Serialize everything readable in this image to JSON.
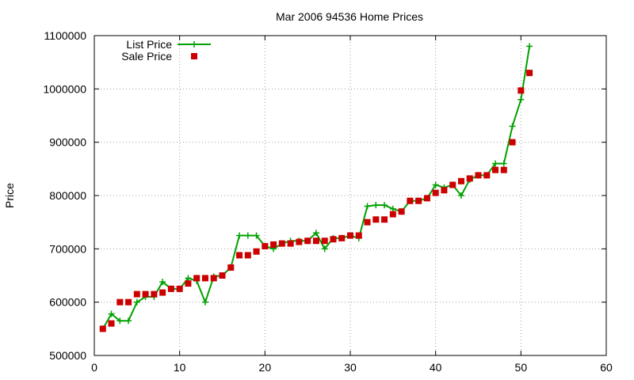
{
  "chart_data": {
    "type": "line",
    "title": "Mar 2006 94536 Home Prices",
    "xlabel": "",
    "ylabel": "Price",
    "xlim": [
      0,
      60
    ],
    "ylim": [
      500000,
      1100000
    ],
    "x_ticks": [
      0,
      10,
      20,
      30,
      40,
      50,
      60
    ],
    "y_ticks": [
      500000,
      600000,
      700000,
      800000,
      900000,
      1000000,
      1100000
    ],
    "x_tick_labels": [
      "0",
      "10",
      "20",
      "30",
      "40",
      "50",
      "60"
    ],
    "y_tick_labels": [
      "500000",
      "600000",
      "700000",
      "800000",
      "900000",
      "1000000",
      "1100000"
    ],
    "grid": true,
    "legend_position": "top-left",
    "series": [
      {
        "name": "List Price",
        "style": "line-plus",
        "color": "#00a000",
        "x": [
          1,
          2,
          3,
          4,
          5,
          6,
          7,
          8,
          9,
          10,
          11,
          12,
          13,
          14,
          15,
          16,
          17,
          18,
          19,
          20,
          21,
          22,
          23,
          24,
          25,
          26,
          27,
          28,
          29,
          30,
          31,
          32,
          33,
          34,
          35,
          36,
          37,
          38,
          39,
          40,
          41,
          42,
          43,
          44,
          45,
          46,
          47,
          48,
          49,
          50,
          51
        ],
        "values": [
          550000,
          578000,
          565000,
          565000,
          600000,
          610000,
          610000,
          638000,
          625000,
          625000,
          645000,
          640000,
          600000,
          648000,
          650000,
          665000,
          725000,
          725000,
          725000,
          705000,
          700000,
          710000,
          715000,
          715000,
          715000,
          730000,
          700000,
          720000,
          720000,
          725000,
          720000,
          780000,
          782000,
          782000,
          775000,
          770000,
          790000,
          790000,
          795000,
          820000,
          815000,
          820000,
          800000,
          830000,
          838000,
          838000,
          860000,
          860000,
          930000,
          980000,
          1080000
        ]
      },
      {
        "name": "Sale Price",
        "style": "square",
        "color": "#cc0000",
        "x": [
          1,
          2,
          3,
          4,
          5,
          6,
          7,
          8,
          9,
          10,
          11,
          12,
          13,
          14,
          15,
          16,
          17,
          18,
          19,
          20,
          21,
          22,
          23,
          24,
          25,
          26,
          27,
          28,
          29,
          30,
          31,
          32,
          33,
          34,
          35,
          36,
          37,
          38,
          39,
          40,
          41,
          42,
          43,
          44,
          45,
          46,
          47,
          48,
          49,
          50,
          51
        ],
        "values": [
          550000,
          560000,
          600000,
          600000,
          615000,
          615000,
          615000,
          618000,
          625000,
          625000,
          635000,
          645000,
          645000,
          645000,
          650000,
          665000,
          688000,
          688000,
          695000,
          705000,
          708000,
          710000,
          710000,
          713000,
          715000,
          715000,
          715000,
          718000,
          720000,
          725000,
          725000,
          750000,
          755000,
          755000,
          765000,
          770000,
          790000,
          790000,
          795000,
          805000,
          810000,
          820000,
          827000,
          832000,
          838000,
          838000,
          848000,
          848000,
          900000,
          997000,
          1030000
        ]
      }
    ]
  }
}
